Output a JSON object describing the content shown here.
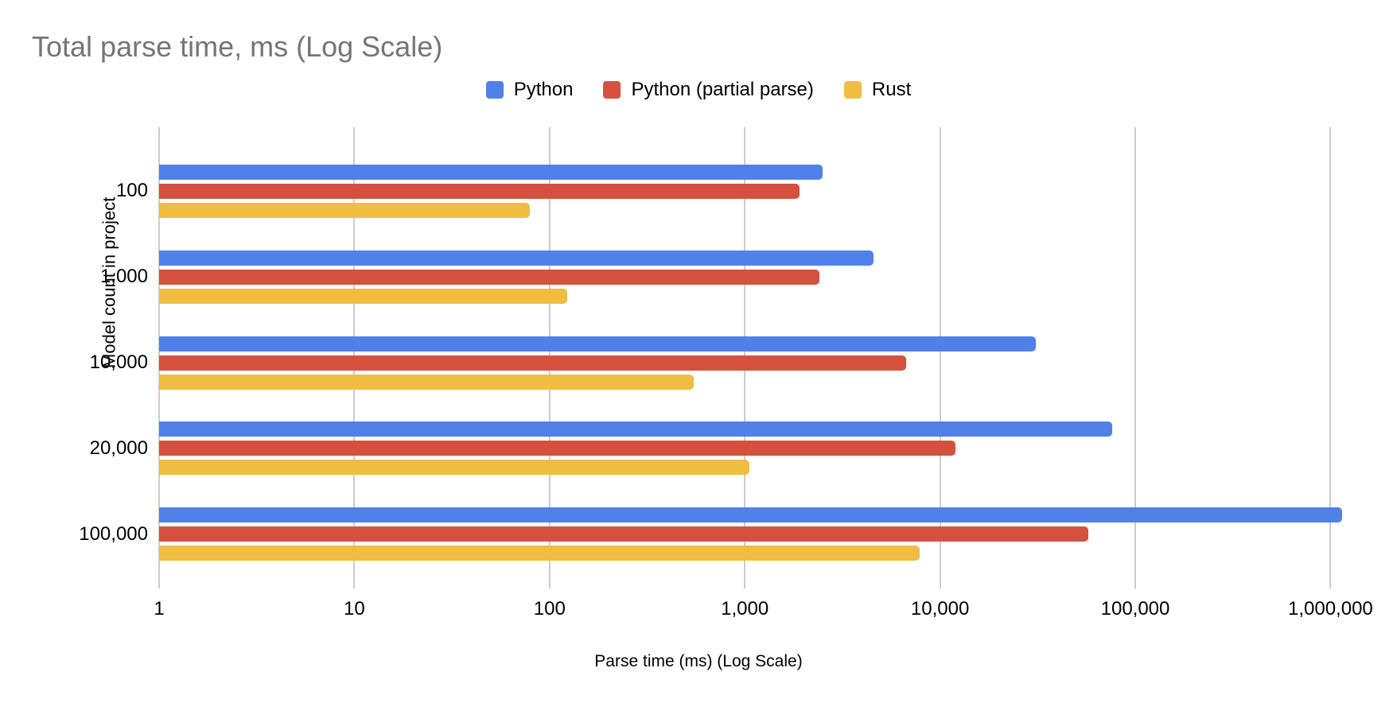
{
  "page": {
    "background_color": "#ffffff",
    "title_color": "#757575",
    "text_color": "#000000",
    "gridline_color": "#cccccc"
  },
  "chart_data": {
    "type": "bar",
    "orientation": "horizontal",
    "title": "Total parse time, ms (Log Scale)",
    "xlabel": "Parse time (ms) (Log Scale)",
    "ylabel": "Model count in project",
    "x_scale": "log",
    "x_range": [
      1,
      1000000
    ],
    "x_ticks": [
      "1",
      "10",
      "100",
      "1,000",
      "10,000",
      "100,000",
      "1,000,000"
    ],
    "grid": true,
    "legend_position": "top",
    "categories": [
      "100",
      "1,000",
      "10,000",
      "20,000",
      "100,000"
    ],
    "series": [
      {
        "name": "Python",
        "color": "#5081E8",
        "values": [
          2500,
          4550,
          31000,
          76000,
          1150000
        ]
      },
      {
        "name": "Python (partial parse)",
        "color": "#D5513F",
        "values": [
          1900,
          2400,
          6700,
          12000,
          57500
        ]
      },
      {
        "name": "Rust",
        "color": "#F0BD41",
        "values": [
          79,
          123,
          550,
          1060,
          7900
        ]
      }
    ]
  }
}
